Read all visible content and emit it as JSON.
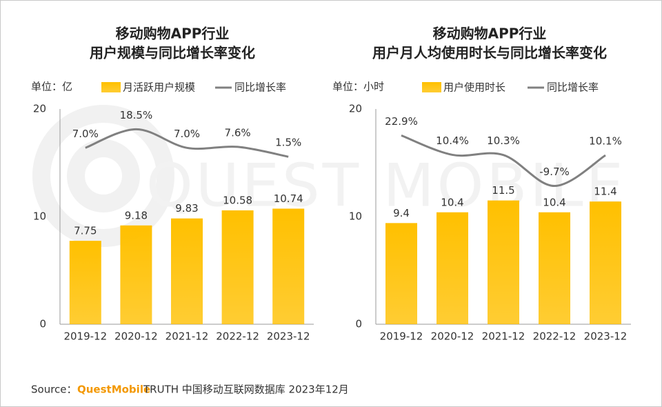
{
  "watermark": "QUEST MOBILE",
  "chart_data": [
    {
      "type": "bar",
      "title": [
        "移动购物APP行业",
        "用户规模与同比增长率变化"
      ],
      "unit": "单位：亿",
      "categories": [
        "2019-12",
        "2020-12",
        "2021-12",
        "2022-12",
        "2023-12"
      ],
      "series": [
        {
          "name": "月活跃用户规模",
          "type": "bar",
          "color": "#FFC000",
          "values": [
            7.75,
            9.18,
            9.83,
            10.58,
            10.74
          ]
        },
        {
          "name": "同比增长率",
          "type": "line",
          "axis": "y2",
          "color": "#808080",
          "values": [
            7.0,
            18.5,
            7.0,
            7.6,
            1.5
          ],
          "value_labels": [
            "7.0%",
            "18.5%",
            "7.0%",
            "7.6%",
            "1.5%"
          ]
        }
      ],
      "ylim": [
        0,
        20
      ],
      "yticks": [
        0,
        10,
        20
      ],
      "y2lim": [
        -102,
        31
      ]
    },
    {
      "type": "bar",
      "title": [
        "移动购物APP行业",
        "用户月人均使用时长与同比增长率变化"
      ],
      "unit": "单位：小时",
      "categories": [
        "2019-12",
        "2020-12",
        "2021-12",
        "2022-12",
        "2023-12"
      ],
      "series": [
        {
          "name": "用户使用时长",
          "type": "bar",
          "color": "#FFC000",
          "values": [
            9.4,
            10.4,
            11.5,
            10.4,
            11.4
          ]
        },
        {
          "name": "同比增长率",
          "type": "line",
          "axis": "y2",
          "color": "#808080",
          "values": [
            22.9,
            10.4,
            10.3,
            -9.7,
            10.1
          ],
          "value_labels": [
            "22.9%",
            "10.4%",
            "10.3%",
            "-9.7%",
            "10.1%"
          ]
        }
      ],
      "ylim": [
        0,
        20
      ],
      "yticks": [
        0,
        10,
        20
      ],
      "y2lim": [
        -99,
        40
      ]
    }
  ],
  "source": {
    "label": "Source：",
    "brand": "QuestMobile",
    "text": "TRUTH 中国移动互联网数据库 2023年12月"
  }
}
